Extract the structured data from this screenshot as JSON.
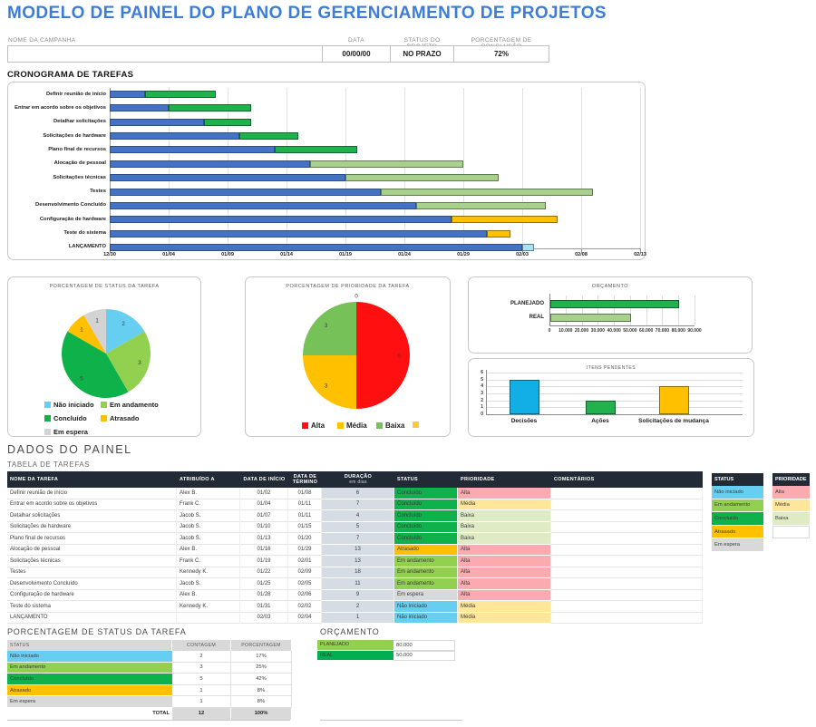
{
  "page": {
    "title": "MODELO DE PAINEL DO PLANO DE GERENCIAMENTO DE PROJETOS"
  },
  "header": {
    "campaign": {
      "label": "NOME DA CAMPANHA",
      "value": ""
    },
    "date": {
      "label": "DATA",
      "value": "00/00/00"
    },
    "status": {
      "label": "STATUS DO PROJETO",
      "value": "NO PRAZO"
    },
    "completion": {
      "label": "PORCENTAGEM DE CONCLUSÃO",
      "value": "72%"
    }
  },
  "sections": {
    "dashboard_data": "DADOS DO PAINEL",
    "task_table": "TABELA DE TAREFAS"
  },
  "status_colors": {
    "Não iniciado": "#66CFF1",
    "Em andamento": "#92D050",
    "Concluído": "#0FB14B",
    "Atrasado": "#FFC000",
    "Em espera": "#D9D9D9"
  },
  "priority_colors": {
    "Alta": "#FBAAB0",
    "Média": "#FFE699",
    "Baixa": "#DFEBC4"
  },
  "chart_data": [
    {
      "type": "gantt",
      "title": "CRONOGRAMA DE TAREFAS",
      "x_ticks": [
        "12/30",
        "01/04",
        "01/09",
        "01/14",
        "01/19",
        "01/24",
        "01/29",
        "02/03",
        "02/08",
        "02/13"
      ],
      "day_span": 45,
      "tick_interval_days": 5,
      "offset_color": "#4472C4",
      "tasks": [
        {
          "name": "Definir reunião de início",
          "start": "01/02",
          "end": "01/08",
          "start_day": 3,
          "end_day": 9,
          "color": "#1FB14C"
        },
        {
          "name": "Entrar em acordo sobre os objetivos",
          "start": "01/04",
          "end": "01/11",
          "start_day": 5,
          "end_day": 12,
          "color": "#1FB14C"
        },
        {
          "name": "Detalhar solicitações",
          "start": "01/07",
          "end": "01/11",
          "start_day": 8,
          "end_day": 12,
          "color": "#1FB14C"
        },
        {
          "name": "Solicitações de hardware",
          "start": "01/10",
          "end": "01/15",
          "start_day": 11,
          "end_day": 16,
          "color": "#1FB14C"
        },
        {
          "name": "Plano final de recursos",
          "start": "01/13",
          "end": "01/20",
          "start_day": 14,
          "end_day": 21,
          "color": "#1FB14C"
        },
        {
          "name": "Alocação de pessoal",
          "start": "01/16",
          "end": "01/29",
          "start_day": 17,
          "end_day": 30,
          "color": "#A9D18E"
        },
        {
          "name": "Solicitações técnicas",
          "start": "01/19",
          "end": "02/01",
          "start_day": 20,
          "end_day": 33,
          "color": "#A9D18E"
        },
        {
          "name": "Testes",
          "start": "01/22",
          "end": "02/09",
          "start_day": 23,
          "end_day": 41,
          "color": "#A9D18E"
        },
        {
          "name": "Desenvolvimento Concluído",
          "start": "01/25",
          "end": "02/05",
          "start_day": 26,
          "end_day": 37,
          "color": "#A9D18E"
        },
        {
          "name": "Configuração de hardware",
          "start": "01/28",
          "end": "02/06",
          "start_day": 29,
          "end_day": 38,
          "color": "#FFC000"
        },
        {
          "name": "Teste do sistema",
          "start": "01/31",
          "end": "02/02",
          "start_day": 32,
          "end_day": 34,
          "color": "#FFC000"
        },
        {
          "name": "LANÇAMENTO",
          "start": "02/03",
          "end": "02/04",
          "start_day": 35,
          "end_day": 36,
          "color": "#A6E1F4"
        }
      ]
    },
    {
      "type": "pie",
      "title": "PORCENTAGEM DE STATUS DA TAREFA",
      "legend_position": "bottom",
      "slices": [
        {
          "label": "Não iniciado",
          "value": 2,
          "color": "#66CFF1"
        },
        {
          "label": "Em andamento",
          "value": 3,
          "color": "#92D050"
        },
        {
          "label": "Concluído",
          "value": 5,
          "color": "#0FB14B"
        },
        {
          "label": "Atrasado",
          "value": 1,
          "color": "#FFC000"
        },
        {
          "label": "Em espera",
          "value": 1,
          "color": "#D3D3D3"
        }
      ]
    },
    {
      "type": "pie",
      "title": "PORCENTAGEM DE PRIORIDADE DA TAREFA",
      "legend_position": "bottom",
      "slices": [
        {
          "label": "Alta",
          "value": 6,
          "color": "#FF0F0F"
        },
        {
          "label": "Média",
          "value": 3,
          "color": "#FFC000"
        },
        {
          "label": "Baixa",
          "value": 3,
          "color": "#77C159"
        },
        {
          "label": "",
          "value": 0,
          "color": "#FFC83D"
        }
      ]
    },
    {
      "type": "bar_horizontal",
      "title": "ORÇAMENTO",
      "categories": [
        "PLANEJADO",
        "REAL"
      ],
      "values": [
        80000,
        50000
      ],
      "colors": [
        "#22B14C",
        "#A9D18E"
      ],
      "xlim": [
        0,
        90000
      ],
      "x_tick_step": 10000,
      "x_tick_labels": [
        "0",
        "10.000",
        "20.000",
        "30.000",
        "40.000",
        "50.000",
        "60.000",
        "70.000",
        "80.000",
        "90.000"
      ]
    },
    {
      "type": "bar",
      "title": "ITENS PENDENTES",
      "categories": [
        "Decisões",
        "Ações",
        "Solicitações de mudança"
      ],
      "values": [
        5,
        2,
        4
      ],
      "colors": [
        "#12AEE6",
        "#22B14C",
        "#FFC000"
      ],
      "ylim": [
        0,
        6
      ],
      "y_ticks": [
        0,
        1,
        2,
        3,
        4,
        5,
        6
      ]
    }
  ],
  "task_table": {
    "headers": [
      "NOME DA TAREFA",
      "ATRIBUÍDO A",
      "DATA DE INÍCIO",
      "DATA DE TÉRMINO",
      "DURAÇÃO",
      "STATUS",
      "PRIORIDADE",
      "COMENTÁRIOS"
    ],
    "duration_subheader": "em dias",
    "rows": [
      {
        "name": "Definir reunião de início",
        "assignee": "Alex B.",
        "start": "01/02",
        "end": "01/08",
        "duration": "6",
        "status": "Concluído",
        "priority": "Alta",
        "comment": ""
      },
      {
        "name": "Entrar em acordo sobre os objetivos",
        "assignee": "Frank C.",
        "start": "01/04",
        "end": "01/11",
        "duration": "7",
        "status": "Concluído",
        "priority": "Média",
        "comment": ""
      },
      {
        "name": "Detalhar solicitações",
        "assignee": "Jacob S.",
        "start": "01/07",
        "end": "01/11",
        "duration": "4",
        "status": "Concluído",
        "priority": "Baixa",
        "comment": ""
      },
      {
        "name": "Solicitações de hardware",
        "assignee": "Jacob S.",
        "start": "01/10",
        "end": "01/15",
        "duration": "5",
        "status": "Concluído",
        "priority": "Baixa",
        "comment": ""
      },
      {
        "name": "Plano final de recursos",
        "assignee": "Jacob S.",
        "start": "01/13",
        "end": "01/20",
        "duration": "7",
        "status": "Concluído",
        "priority": "Baixa",
        "comment": ""
      },
      {
        "name": "Alocação de pessoal",
        "assignee": "Alex B.",
        "start": "01/16",
        "end": "01/29",
        "duration": "13",
        "status": "Atrasado",
        "priority": "Alta",
        "comment": ""
      },
      {
        "name": "Solicitações técnicas",
        "assignee": "Frank C.",
        "start": "01/19",
        "end": "02/01",
        "duration": "13",
        "status": "Em andamento",
        "priority": "Alta",
        "comment": ""
      },
      {
        "name": "Testes",
        "assignee": "Kennedy K.",
        "start": "01/22",
        "end": "02/09",
        "duration": "18",
        "status": "Em andamento",
        "priority": "Alta",
        "comment": ""
      },
      {
        "name": "Desenvolvimento Concluído",
        "assignee": "Jacob S.",
        "start": "01/25",
        "end": "02/05",
        "duration": "11",
        "status": "Em andamento",
        "priority": "Alta",
        "comment": ""
      },
      {
        "name": "Configuração de hardware",
        "assignee": "Alex B.",
        "start": "01/28",
        "end": "02/06",
        "duration": "9",
        "status": "Em espera",
        "priority": "Alta",
        "comment": ""
      },
      {
        "name": "Teste do sistema",
        "assignee": "Kennedy K.",
        "start": "01/31",
        "end": "02/02",
        "duration": "2",
        "status": "Não iniciado",
        "priority": "Média",
        "comment": ""
      },
      {
        "name": "LANÇAMENTO",
        "assignee": "",
        "start": "02/03",
        "end": "02/04",
        "duration": "1",
        "status": "Não iniciado",
        "priority": "Média",
        "comment": ""
      }
    ]
  },
  "status_key": {
    "title": "STATUS",
    "items": [
      "Não iniciado",
      "Em andamento",
      "Concluído",
      "Atrasado",
      "Em espera"
    ]
  },
  "priority_key": {
    "title": "PRIORIDADE",
    "items": [
      "Alta",
      "Média",
      "Baixa",
      ""
    ]
  },
  "status_summary": {
    "title": "PORCENTAGEM DE STATUS DA TAREFA",
    "headers": [
      "STATUS",
      "CONTAGEM",
      "PORCENTAGEM"
    ],
    "rows": [
      [
        "Não iniciado",
        "2",
        "17%"
      ],
      [
        "Em andamento",
        "3",
        "25%"
      ],
      [
        "Concluído",
        "5",
        "42%"
      ],
      [
        "Atrasado",
        "1",
        "8%"
      ],
      [
        "Em espera",
        "1",
        "8%"
      ]
    ],
    "total": [
      "TOTAL",
      "12",
      "100%"
    ]
  },
  "budget_table": {
    "title": "ORÇAMENTO",
    "rows": [
      {
        "label": "PLANEJADO",
        "value": "80.000",
        "color": "#92D050"
      },
      {
        "label": "REAL",
        "value": "50.000",
        "color": "#00B050"
      }
    ]
  }
}
